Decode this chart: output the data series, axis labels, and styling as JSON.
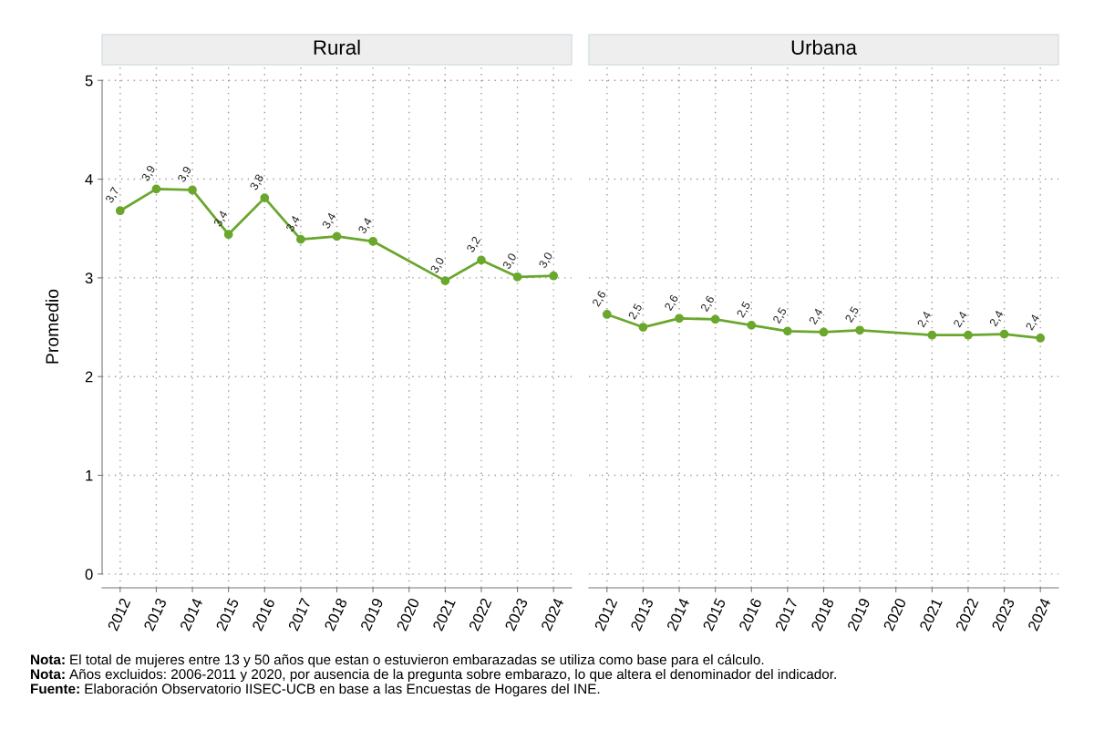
{
  "chart_data": [
    {
      "type": "line",
      "title": "Rural",
      "ylabel": "Promedio",
      "categories": [
        "2012",
        "2013",
        "2014",
        "2015",
        "2016",
        "2017",
        "2018",
        "2019",
        "2020",
        "2021",
        "2022",
        "2023",
        "2024"
      ],
      "series": [
        {
          "color": "#6aa72d",
          "values": [
            3.68,
            3.9,
            3.89,
            3.44,
            3.81,
            3.39,
            3.42,
            3.37,
            null,
            2.97,
            3.18,
            3.01,
            3.02
          ],
          "value_labels": [
            "3,7",
            "3,9",
            "3,9",
            "3,4",
            "3,8",
            "3,4",
            "3,4",
            "3,4",
            null,
            "3,0",
            "3,2",
            "3,0",
            "3,0"
          ]
        }
      ],
      "ylim": [
        -0.14,
        5.15
      ],
      "yticks": [
        0,
        1,
        2,
        3,
        4,
        5
      ],
      "grid": true,
      "marker": "circle",
      "line_style": "solid",
      "annotations": [
        "Nota: El total de mujeres entre 13 y 50 años que estan o estuvieron embarazadas se utiliza como base para el cálculo.",
        "Nota: Años excluidos: 2006-2011 y 2020, por ausencia de la pregunta sobre embarazo, lo que altera el denominador del indicador.",
        "Fuente: Elaboración Observatorio IISEC-UCB en base a las Encuestas de Hogares del INE."
      ]
    },
    {
      "type": "line",
      "title": "Urbana",
      "categories": [
        "2012",
        "2013",
        "2014",
        "2015",
        "2016",
        "2017",
        "2018",
        "2019",
        "2020",
        "2021",
        "2022",
        "2023",
        "2024"
      ],
      "series": [
        {
          "color": "#6aa72d",
          "values": [
            2.63,
            2.5,
            2.59,
            2.58,
            2.52,
            2.46,
            2.45,
            2.47,
            null,
            2.42,
            2.42,
            2.43,
            2.39
          ],
          "value_labels": [
            "2,6",
            "2,5",
            "2,6",
            "2,6",
            "2,5",
            "2,5",
            "2,4",
            "2,5",
            null,
            "2,4",
            "2,4",
            "2,4",
            "2,4"
          ]
        }
      ],
      "ylim": [
        -0.14,
        5.15
      ],
      "yticks": [
        0,
        1,
        2,
        3,
        4,
        5
      ],
      "grid": true,
      "marker": "circle",
      "line_style": "solid",
      "tick_labels": "x"
    }
  ]
}
